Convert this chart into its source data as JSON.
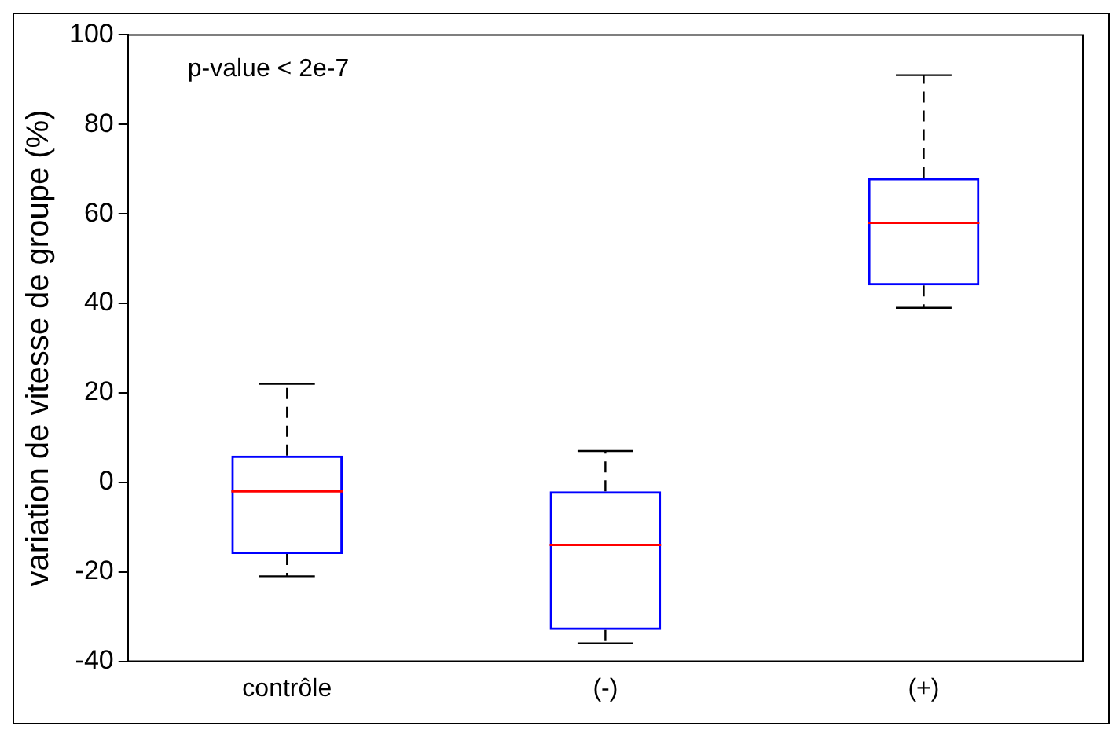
{
  "chart_data": {
    "type": "box",
    "ylabel": "variation de vitesse de groupe (%)",
    "categories": [
      "contrôle",
      "(-)",
      "(+)"
    ],
    "color": "#0000ff",
    "boxes": [
      {
        "low": -21,
        "q1": -16,
        "median": -2,
        "q3": 6,
        "high": 22
      },
      {
        "low": -36,
        "q1": -33,
        "median": -14,
        "q3": -2,
        "high": 7
      },
      {
        "low": 39,
        "q1": 44,
        "median": 58,
        "q3": 68,
        "high": 91
      }
    ],
    "ylim": [
      -40,
      100
    ],
    "yticks": [
      -40,
      -20,
      0,
      20,
      40,
      60,
      80,
      100
    ],
    "annotations": [
      "p-value < 2e-7"
    ]
  }
}
